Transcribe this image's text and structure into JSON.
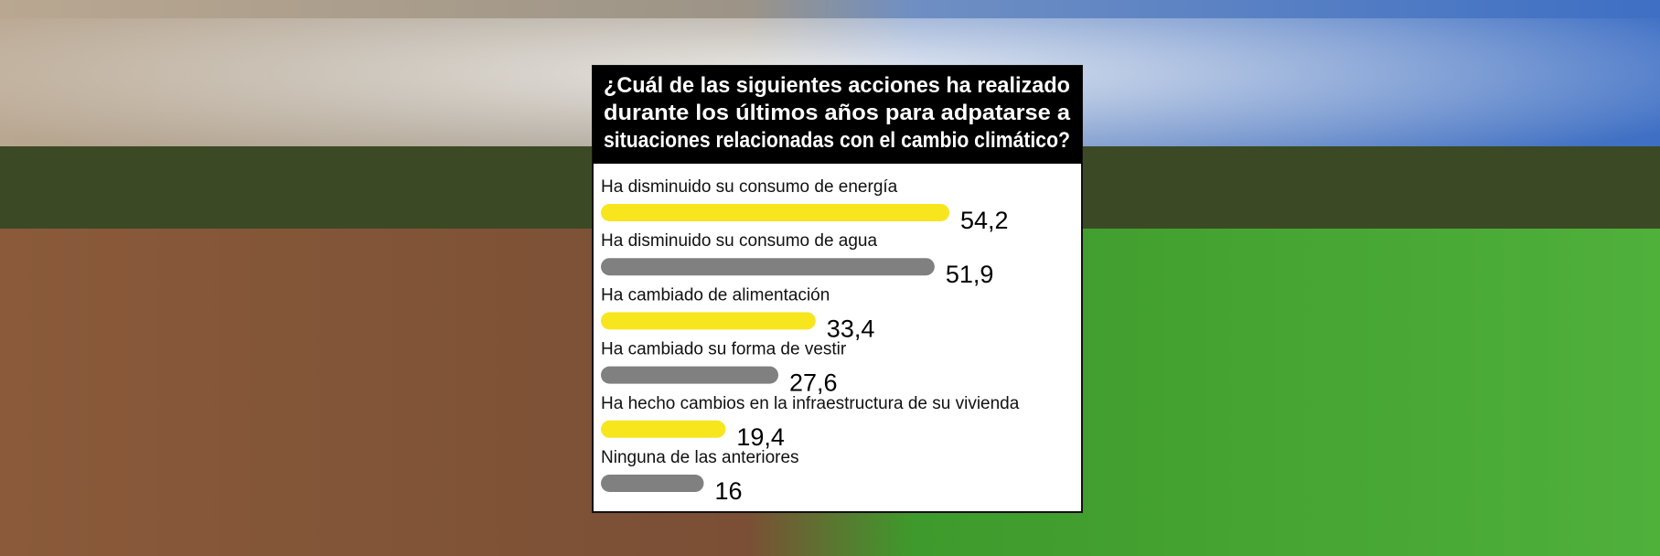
{
  "chart_data": {
    "type": "hbar",
    "title": [
      "¿Cuál de las siguientes acciones ha realizado",
      "durante los últimos años para adpatarse a",
      "situaciones relacionadas con el cambio climático?"
    ],
    "categories": [
      "Ha disminuido su consumo de energía",
      "Ha disminuido su consumo de agua",
      "Ha cambiado de alimentación",
      "Ha cambiado su forma de vestir",
      "Ha hecho cambios en la infraestructura de su vivienda",
      "Ninguna de las anteriores"
    ],
    "values": [
      54.2,
      51.9,
      33.4,
      27.6,
      19.4,
      16
    ],
    "value_labels": [
      "54,2",
      "51,9",
      "33,4",
      "27,6",
      "19,4",
      "16"
    ],
    "colors": [
      "#f7e61d",
      "#808080",
      "#f7e61d",
      "#808080",
      "#f7e61d",
      "#808080"
    ]
  }
}
